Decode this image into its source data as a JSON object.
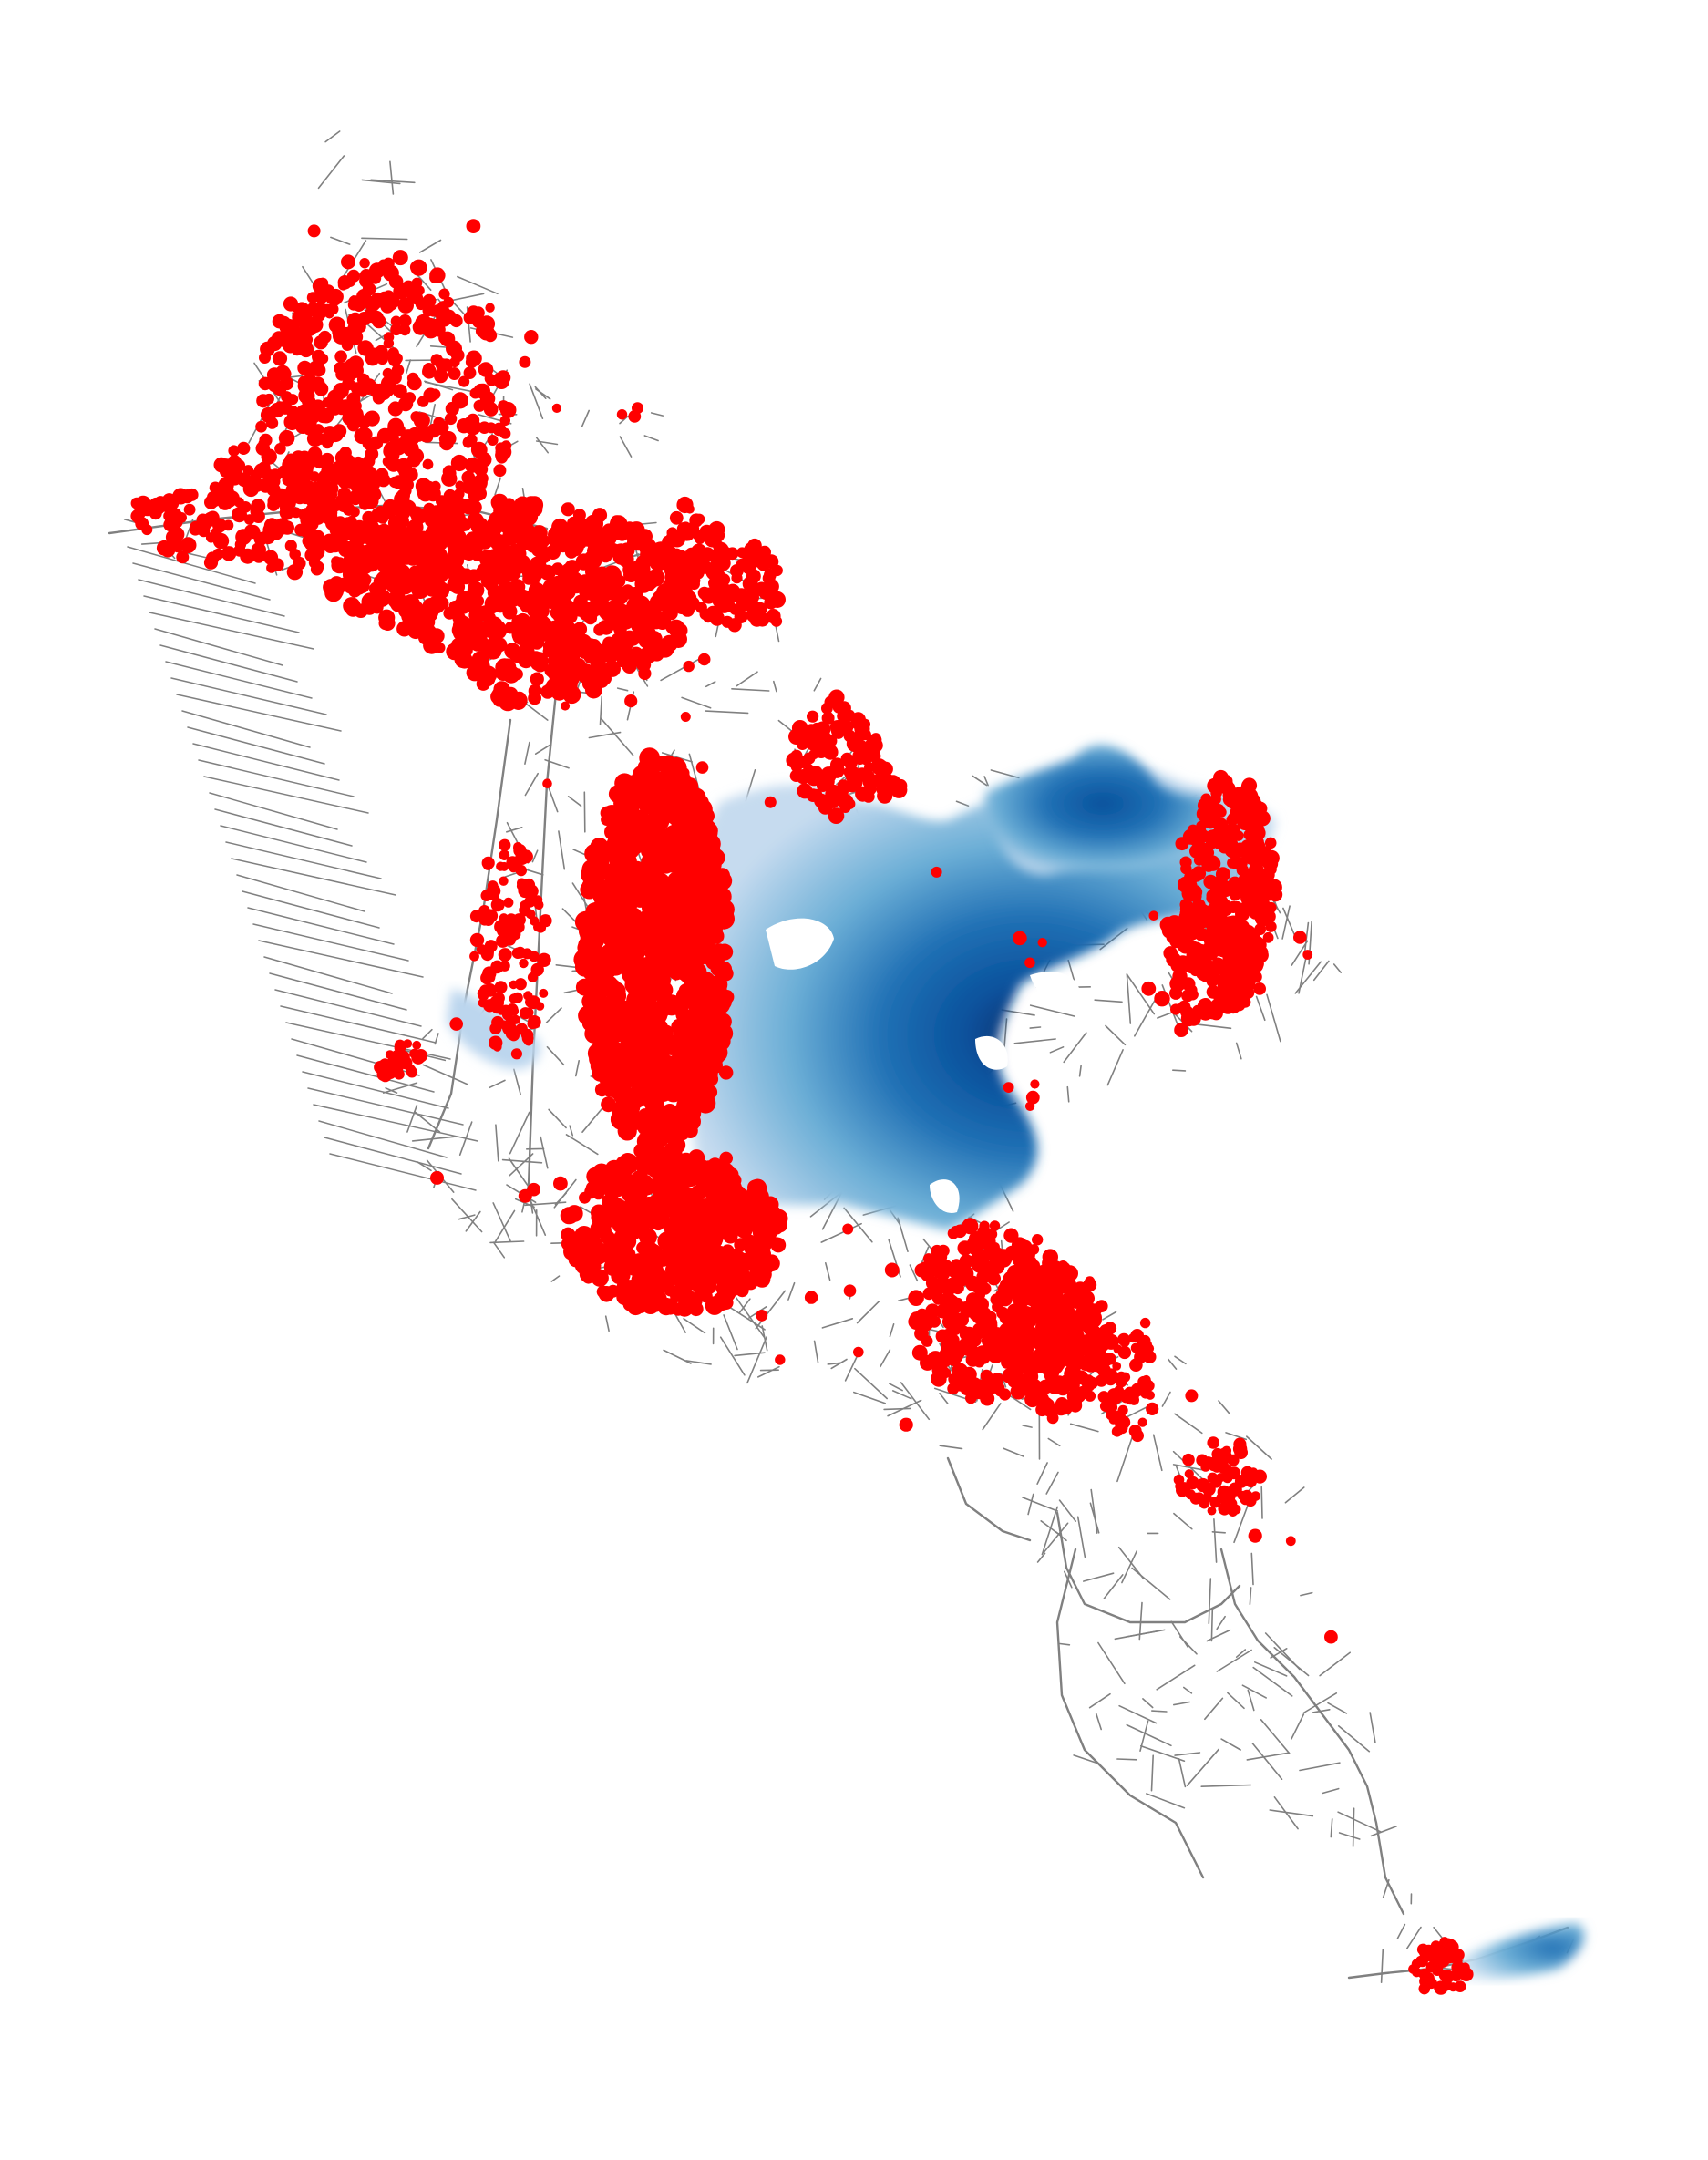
{
  "map": {
    "style": "network-points",
    "background_color": "#ffffff",
    "colors": {
      "road_network": "#808080",
      "points": "#ff0000",
      "density_scale": [
        "#deebf7",
        "#c6dbef",
        "#9ecae1",
        "#6baed6",
        "#4292c6",
        "#2171b5",
        "#08519c",
        "#08306b"
      ]
    },
    "layers": [
      "road-network",
      "density-surface",
      "point-locations"
    ]
  }
}
